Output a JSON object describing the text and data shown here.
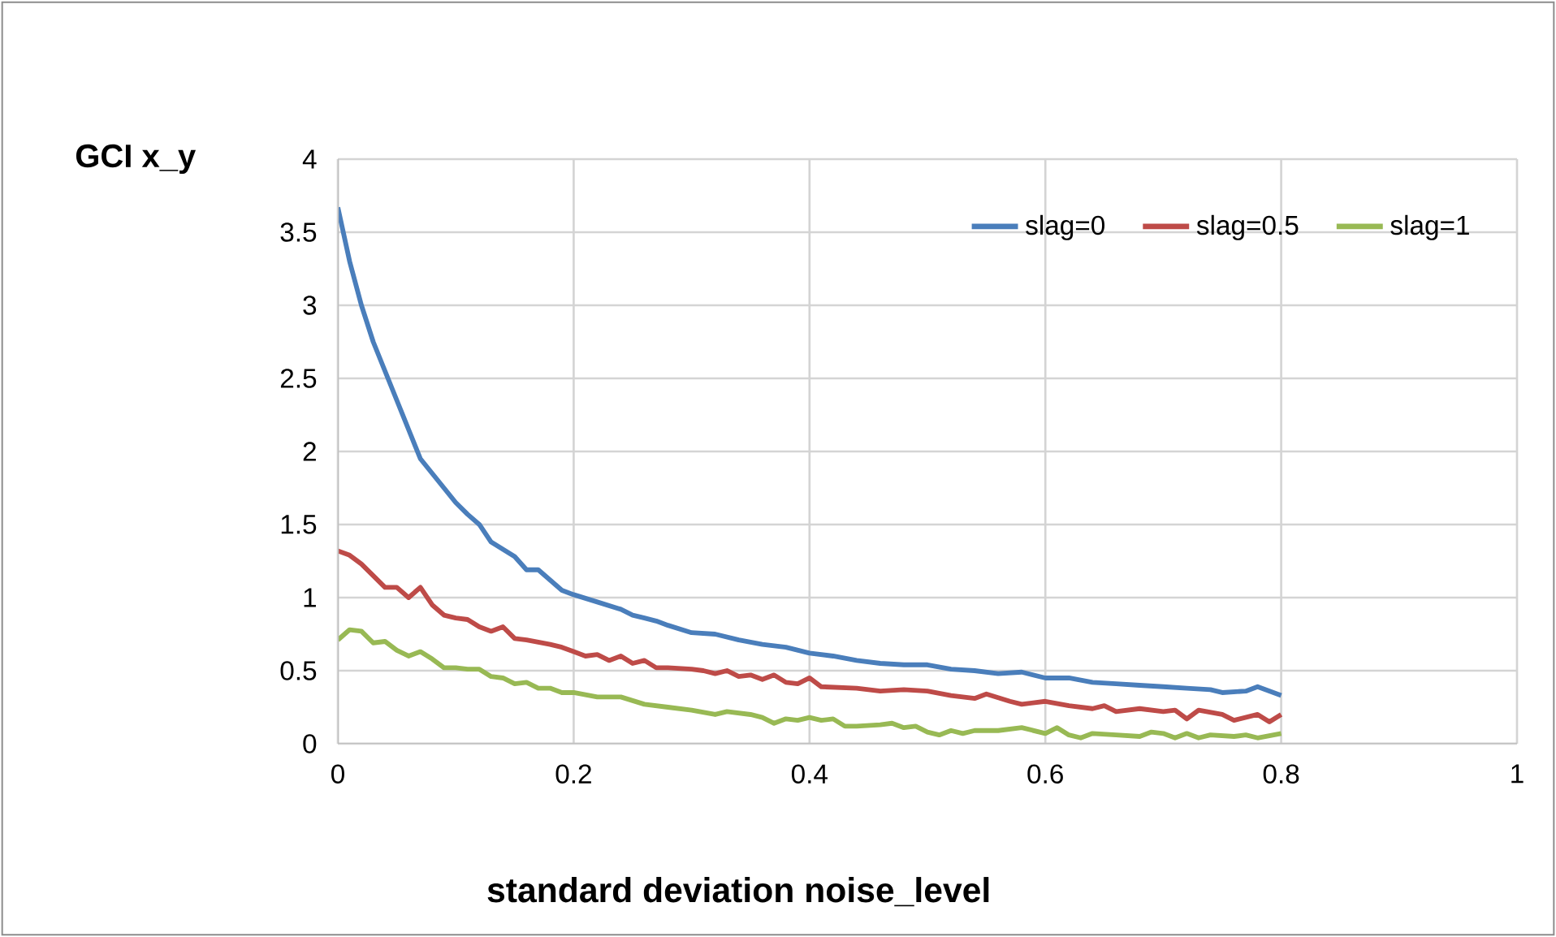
{
  "chart_data": {
    "type": "line",
    "ylabel": "GCI x_y",
    "xlabel": "standard deviation noise_level",
    "xlim": [
      0,
      1
    ],
    "xticks": [
      0,
      0.2,
      0.4,
      0.6,
      0.8,
      1
    ],
    "ylim": [
      0,
      4
    ],
    "yticks": [
      0,
      0.5,
      1,
      1.5,
      2,
      2.5,
      3,
      3.5,
      4
    ],
    "grid": true,
    "legend": "top right",
    "marker": "none",
    "line_style": "solid",
    "series": [
      {
        "name": "slag=0",
        "color": "#4a7ebb",
        "x": [
          0,
          0.01,
          0.02,
          0.03,
          0.04,
          0.05,
          0.06,
          0.07,
          0.08,
          0.09,
          0.1,
          0.11,
          0.12,
          0.13,
          0.14,
          0.15,
          0.16,
          0.17,
          0.18,
          0.19,
          0.2,
          0.22,
          0.24,
          0.25,
          0.26,
          0.27,
          0.28,
          0.3,
          0.32,
          0.34,
          0.36,
          0.38,
          0.4,
          0.42,
          0.44,
          0.46,
          0.48,
          0.5,
          0.52,
          0.54,
          0.56,
          0.58,
          0.6,
          0.62,
          0.64,
          0.66,
          0.68,
          0.7,
          0.72,
          0.74,
          0.75,
          0.77,
          0.78,
          0.8
        ],
        "values": [
          3.67,
          3.3,
          3.0,
          2.75,
          2.55,
          2.35,
          2.15,
          1.95,
          1.85,
          1.75,
          1.65,
          1.57,
          1.5,
          1.38,
          1.33,
          1.28,
          1.19,
          1.19,
          1.12,
          1.05,
          1.02,
          0.97,
          0.92,
          0.88,
          0.86,
          0.84,
          0.81,
          0.76,
          0.75,
          0.71,
          0.68,
          0.66,
          0.62,
          0.6,
          0.57,
          0.55,
          0.54,
          0.54,
          0.51,
          0.5,
          0.48,
          0.49,
          0.45,
          0.45,
          0.42,
          0.41,
          0.4,
          0.39,
          0.38,
          0.37,
          0.35,
          0.36,
          0.39,
          0.33
        ]
      },
      {
        "name": "slag=0.5",
        "color": "#be4b48",
        "x": [
          0,
          0.01,
          0.02,
          0.03,
          0.04,
          0.05,
          0.06,
          0.07,
          0.08,
          0.09,
          0.1,
          0.11,
          0.12,
          0.13,
          0.14,
          0.15,
          0.16,
          0.18,
          0.19,
          0.2,
          0.21,
          0.22,
          0.23,
          0.24,
          0.25,
          0.26,
          0.27,
          0.28,
          0.3,
          0.31,
          0.32,
          0.33,
          0.34,
          0.35,
          0.36,
          0.37,
          0.38,
          0.39,
          0.4,
          0.41,
          0.44,
          0.46,
          0.48,
          0.5,
          0.52,
          0.54,
          0.55,
          0.57,
          0.58,
          0.6,
          0.62,
          0.64,
          0.65,
          0.66,
          0.68,
          0.7,
          0.71,
          0.72,
          0.73,
          0.75,
          0.76,
          0.78,
          0.79,
          0.8
        ],
        "values": [
          1.32,
          1.29,
          1.23,
          1.15,
          1.07,
          1.07,
          1.0,
          1.07,
          0.95,
          0.88,
          0.86,
          0.85,
          0.8,
          0.77,
          0.8,
          0.72,
          0.71,
          0.68,
          0.66,
          0.63,
          0.6,
          0.61,
          0.57,
          0.6,
          0.55,
          0.57,
          0.52,
          0.52,
          0.51,
          0.5,
          0.48,
          0.5,
          0.46,
          0.47,
          0.44,
          0.47,
          0.42,
          0.41,
          0.45,
          0.39,
          0.38,
          0.36,
          0.37,
          0.36,
          0.33,
          0.31,
          0.34,
          0.29,
          0.27,
          0.29,
          0.26,
          0.24,
          0.26,
          0.22,
          0.24,
          0.22,
          0.23,
          0.17,
          0.23,
          0.2,
          0.16,
          0.2,
          0.15,
          0.2
        ]
      },
      {
        "name": "slag=1",
        "color": "#98b954",
        "x": [
          0,
          0.01,
          0.02,
          0.03,
          0.04,
          0.05,
          0.06,
          0.07,
          0.08,
          0.09,
          0.1,
          0.11,
          0.12,
          0.13,
          0.14,
          0.15,
          0.16,
          0.17,
          0.18,
          0.19,
          0.2,
          0.22,
          0.24,
          0.26,
          0.28,
          0.3,
          0.32,
          0.33,
          0.35,
          0.36,
          0.37,
          0.38,
          0.39,
          0.4,
          0.41,
          0.42,
          0.43,
          0.44,
          0.46,
          0.47,
          0.48,
          0.49,
          0.5,
          0.51,
          0.52,
          0.53,
          0.54,
          0.56,
          0.58,
          0.6,
          0.61,
          0.62,
          0.63,
          0.64,
          0.66,
          0.68,
          0.69,
          0.7,
          0.71,
          0.72,
          0.73,
          0.74,
          0.76,
          0.77,
          0.78,
          0.8
        ],
        "values": [
          0.71,
          0.78,
          0.77,
          0.69,
          0.7,
          0.64,
          0.6,
          0.63,
          0.58,
          0.52,
          0.52,
          0.51,
          0.51,
          0.46,
          0.45,
          0.41,
          0.42,
          0.38,
          0.38,
          0.35,
          0.35,
          0.32,
          0.32,
          0.27,
          0.25,
          0.23,
          0.2,
          0.22,
          0.2,
          0.18,
          0.14,
          0.17,
          0.16,
          0.18,
          0.16,
          0.17,
          0.12,
          0.12,
          0.13,
          0.14,
          0.11,
          0.12,
          0.08,
          0.06,
          0.09,
          0.07,
          0.09,
          0.09,
          0.11,
          0.07,
          0.11,
          0.06,
          0.04,
          0.07,
          0.06,
          0.05,
          0.08,
          0.07,
          0.04,
          0.07,
          0.04,
          0.06,
          0.05,
          0.06,
          0.04,
          0.07
        ]
      }
    ]
  }
}
